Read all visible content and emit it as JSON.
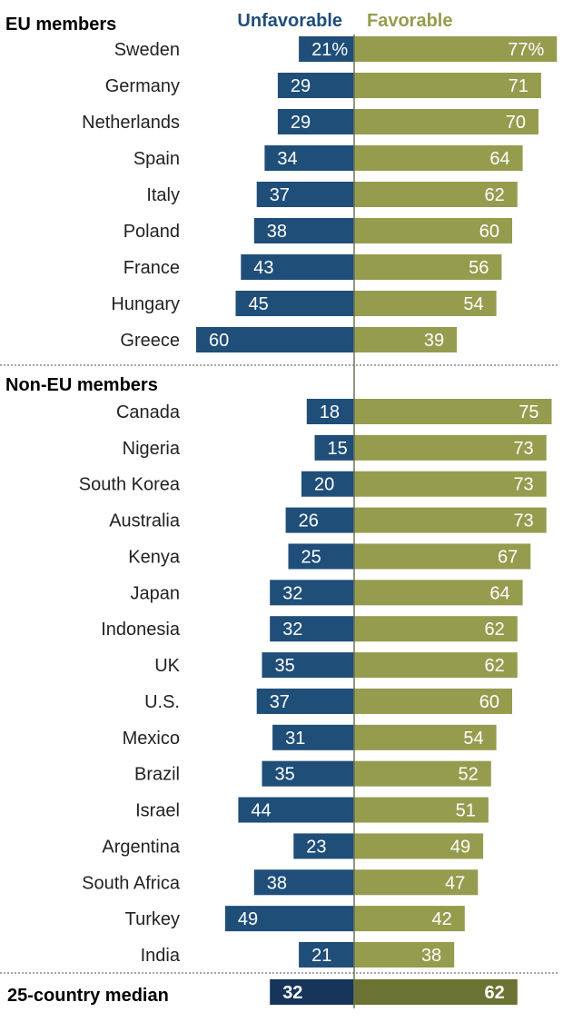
{
  "chart_data": {
    "type": "bar",
    "layout": "diverging-horizontal",
    "legend": {
      "unfavorable": "Unfavorable",
      "favorable": "Favorable"
    },
    "colors": {
      "unfavorable": "#1f4e79",
      "favorable": "#959c4e",
      "median_unfavorable": "#17345a",
      "median_favorable": "#6b7233",
      "axis": "#6f7455",
      "divider": "#888888"
    },
    "groups": [
      {
        "title": "EU members",
        "rows": [
          {
            "country": "Sweden",
            "unfavorable": 21,
            "favorable": 77,
            "unfavorable_label": "21%",
            "favorable_label": "77%"
          },
          {
            "country": "Germany",
            "unfavorable": 29,
            "favorable": 71,
            "unfavorable_label": "29",
            "favorable_label": "71"
          },
          {
            "country": "Netherlands",
            "unfavorable": 29,
            "favorable": 70,
            "unfavorable_label": "29",
            "favorable_label": "70"
          },
          {
            "country": "Spain",
            "unfavorable": 34,
            "favorable": 64,
            "unfavorable_label": "34",
            "favorable_label": "64"
          },
          {
            "country": "Italy",
            "unfavorable": 37,
            "favorable": 62,
            "unfavorable_label": "37",
            "favorable_label": "62"
          },
          {
            "country": "Poland",
            "unfavorable": 38,
            "favorable": 60,
            "unfavorable_label": "38",
            "favorable_label": "60"
          },
          {
            "country": "France",
            "unfavorable": 43,
            "favorable": 56,
            "unfavorable_label": "43",
            "favorable_label": "56"
          },
          {
            "country": "Hungary",
            "unfavorable": 45,
            "favorable": 54,
            "unfavorable_label": "45",
            "favorable_label": "54"
          },
          {
            "country": "Greece",
            "unfavorable": 60,
            "favorable": 39,
            "unfavorable_label": "60",
            "favorable_label": "39"
          }
        ]
      },
      {
        "title": "Non-EU members",
        "rows": [
          {
            "country": "Canada",
            "unfavorable": 18,
            "favorable": 75,
            "unfavorable_label": "18",
            "favorable_label": "75"
          },
          {
            "country": "Nigeria",
            "unfavorable": 15,
            "favorable": 73,
            "unfavorable_label": "15",
            "favorable_label": "73"
          },
          {
            "country": "South Korea",
            "unfavorable": 20,
            "favorable": 73,
            "unfavorable_label": "20",
            "favorable_label": "73"
          },
          {
            "country": "Australia",
            "unfavorable": 26,
            "favorable": 73,
            "unfavorable_label": "26",
            "favorable_label": "73"
          },
          {
            "country": "Kenya",
            "unfavorable": 25,
            "favorable": 67,
            "unfavorable_label": "25",
            "favorable_label": "67"
          },
          {
            "country": "Japan",
            "unfavorable": 32,
            "favorable": 64,
            "unfavorable_label": "32",
            "favorable_label": "64"
          },
          {
            "country": "Indonesia",
            "unfavorable": 32,
            "favorable": 62,
            "unfavorable_label": "32",
            "favorable_label": "62"
          },
          {
            "country": "UK",
            "unfavorable": 35,
            "favorable": 62,
            "unfavorable_label": "35",
            "favorable_label": "62"
          },
          {
            "country": "U.S.",
            "unfavorable": 37,
            "favorable": 60,
            "unfavorable_label": "37",
            "favorable_label": "60"
          },
          {
            "country": "Mexico",
            "unfavorable": 31,
            "favorable": 54,
            "unfavorable_label": "31",
            "favorable_label": "54"
          },
          {
            "country": "Brazil",
            "unfavorable": 35,
            "favorable": 52,
            "unfavorable_label": "35",
            "favorable_label": "52"
          },
          {
            "country": "Israel",
            "unfavorable": 44,
            "favorable": 51,
            "unfavorable_label": "44",
            "favorable_label": "51"
          },
          {
            "country": "Argentina",
            "unfavorable": 23,
            "favorable": 49,
            "unfavorable_label": "23",
            "favorable_label": "49"
          },
          {
            "country": "South Africa",
            "unfavorable": 38,
            "favorable": 47,
            "unfavorable_label": "38",
            "favorable_label": "47"
          },
          {
            "country": "Turkey",
            "unfavorable": 49,
            "favorable": 42,
            "unfavorable_label": "49",
            "favorable_label": "42"
          },
          {
            "country": "India",
            "unfavorable": 21,
            "favorable": 38,
            "unfavorable_label": "21",
            "favorable_label": "38"
          }
        ]
      }
    ],
    "median": {
      "label": "25-country median",
      "unfavorable": 32,
      "favorable": 62,
      "unfavorable_label": "32",
      "favorable_label": "62"
    }
  }
}
